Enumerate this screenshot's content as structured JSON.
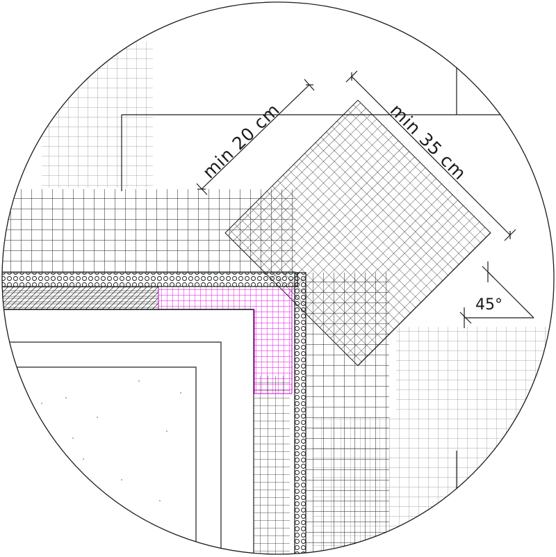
{
  "diagram": {
    "dimensions": {
      "short_side": "min 20 cm",
      "long_side": "min 35 cm",
      "angle": "45°"
    },
    "colors": {
      "line": "#1a1a1a",
      "light_mesh": "#a9a9a9",
      "accent_mesh": "#e000e0",
      "background": "#ffffff"
    }
  }
}
